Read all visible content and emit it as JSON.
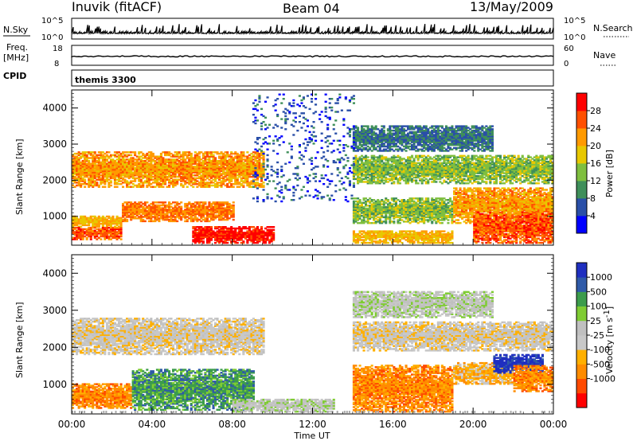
{
  "header": {
    "station": "Inuvik (fitACF)",
    "beam": "Beam 04",
    "date": "13/May/2009"
  },
  "top_panels": {
    "nsky_label": "N.Sky",
    "nsky_ticks": [
      "10^5",
      "10^0"
    ],
    "nsearch_label": "N.Search",
    "nsearch_ticks": [
      "10^5",
      "10^0"
    ],
    "freq_label": "Freq.",
    "freq_unit": "[MHz]",
    "freq_ticks": [
      "18",
      "8"
    ],
    "nave_label": "Nave",
    "nave_ticks": [
      "60",
      "0"
    ],
    "cpid_label": "CPID",
    "cpid_value": "themis 3300"
  },
  "colors": {
    "power": [
      "#0000ff",
      "#2a4fa8",
      "#3f8f5a",
      "#7fbf3f",
      "#e8c800",
      "#ff9a00",
      "#ff5000",
      "#ff0000"
    ],
    "velocity": [
      "#ff0000",
      "#ff4a00",
      "#ff8c00",
      "#ffb000",
      "#c8c8c8",
      "#c0c0c0",
      "#7fcc33",
      "#3c9c4c",
      "#2f5aa8",
      "#1f2fc0"
    ],
    "ground": "#a9a9a9"
  },
  "chart_data": [
    {
      "type": "heatmap",
      "name": "Power",
      "ylabel": "Slant Range [km]",
      "yticks": [
        "1000",
        "2000",
        "3000",
        "4000"
      ],
      "ylim": [
        200,
        4500
      ],
      "colorbar_label": "Power [dB]",
      "colorbar_ticks": [
        "4",
        "8",
        "12",
        "16",
        "20",
        "24",
        "28"
      ],
      "colorbar_range": [
        0,
        32
      ],
      "bands": [
        {
          "t": [
            0,
            9.5
          ],
          "r": [
            1800,
            2800
          ],
          "v": 22
        },
        {
          "t": [
            0,
            2.5
          ],
          "r": [
            700,
            1000
          ],
          "v": 20
        },
        {
          "t": [
            0,
            2.5
          ],
          "r": [
            350,
            700
          ],
          "v": 26
        },
        {
          "t": [
            2.5,
            8
          ],
          "r": [
            850,
            1400
          ],
          "v": 24
        },
        {
          "t": [
            6,
            10
          ],
          "r": [
            250,
            700
          ],
          "v": 30
        },
        {
          "t": [
            14,
            21
          ],
          "r": [
            2800,
            3500
          ],
          "v": 8
        },
        {
          "t": [
            14,
            24
          ],
          "r": [
            1900,
            2700
          ],
          "v": 14
        },
        {
          "t": [
            14,
            19
          ],
          "r": [
            800,
            1500
          ],
          "v": 14
        },
        {
          "t": [
            19,
            24
          ],
          "r": [
            800,
            1800
          ],
          "v": 22
        },
        {
          "t": [
            20,
            24
          ],
          "r": [
            250,
            1100
          ],
          "v": 26
        },
        {
          "t": [
            14,
            19
          ],
          "r": [
            250,
            600
          ],
          "v": 20
        },
        {
          "t": [
            9,
            14
          ],
          "r": [
            1400,
            4400
          ],
          "v": 6
        }
      ]
    },
    {
      "type": "heatmap",
      "name": "Velocity",
      "ylabel": "Slant Range [km]",
      "yticks": [
        "1000",
        "2000",
        "3000",
        "4000"
      ],
      "ylim": [
        200,
        4500
      ],
      "colorbar_label": "Velocity [m s",
      "colorbar_label_sup": "-1",
      "colorbar_label_end": "]",
      "colorbar_ticks": [
        "1000",
        "500",
        "100",
        "25",
        "-25",
        "-100",
        "-500",
        "-1000"
      ],
      "bands": [
        {
          "t": [
            0,
            9.5
          ],
          "r": [
            1800,
            2800
          ],
          "v": 4
        },
        {
          "t": [
            0,
            3
          ],
          "r": [
            350,
            1000
          ],
          "v": 2
        },
        {
          "t": [
            3,
            9
          ],
          "r": [
            300,
            1400
          ],
          "v": 7
        },
        {
          "t": [
            8,
            13
          ],
          "r": [
            250,
            600
          ],
          "v": 5
        },
        {
          "t": [
            14,
            21
          ],
          "r": [
            2800,
            3500
          ],
          "v": 5
        },
        {
          "t": [
            14,
            24
          ],
          "r": [
            1900,
            2700
          ],
          "v": 4
        },
        {
          "t": [
            14,
            19
          ],
          "r": [
            250,
            1500
          ],
          "v": 2
        },
        {
          "t": [
            19,
            22
          ],
          "r": [
            1000,
            1600
          ],
          "v": 3
        },
        {
          "t": [
            21,
            23.5
          ],
          "r": [
            1300,
            1800
          ],
          "v": 9
        },
        {
          "t": [
            22,
            24
          ],
          "r": [
            800,
            1500
          ],
          "v": 2
        }
      ]
    }
  ],
  "time_axis": {
    "xlabel": "Time UT",
    "ticks": [
      "00:00",
      "04:00",
      "08:00",
      "12:00",
      "16:00",
      "20:00",
      "00:00"
    ],
    "range_hours": [
      0,
      24
    ]
  }
}
